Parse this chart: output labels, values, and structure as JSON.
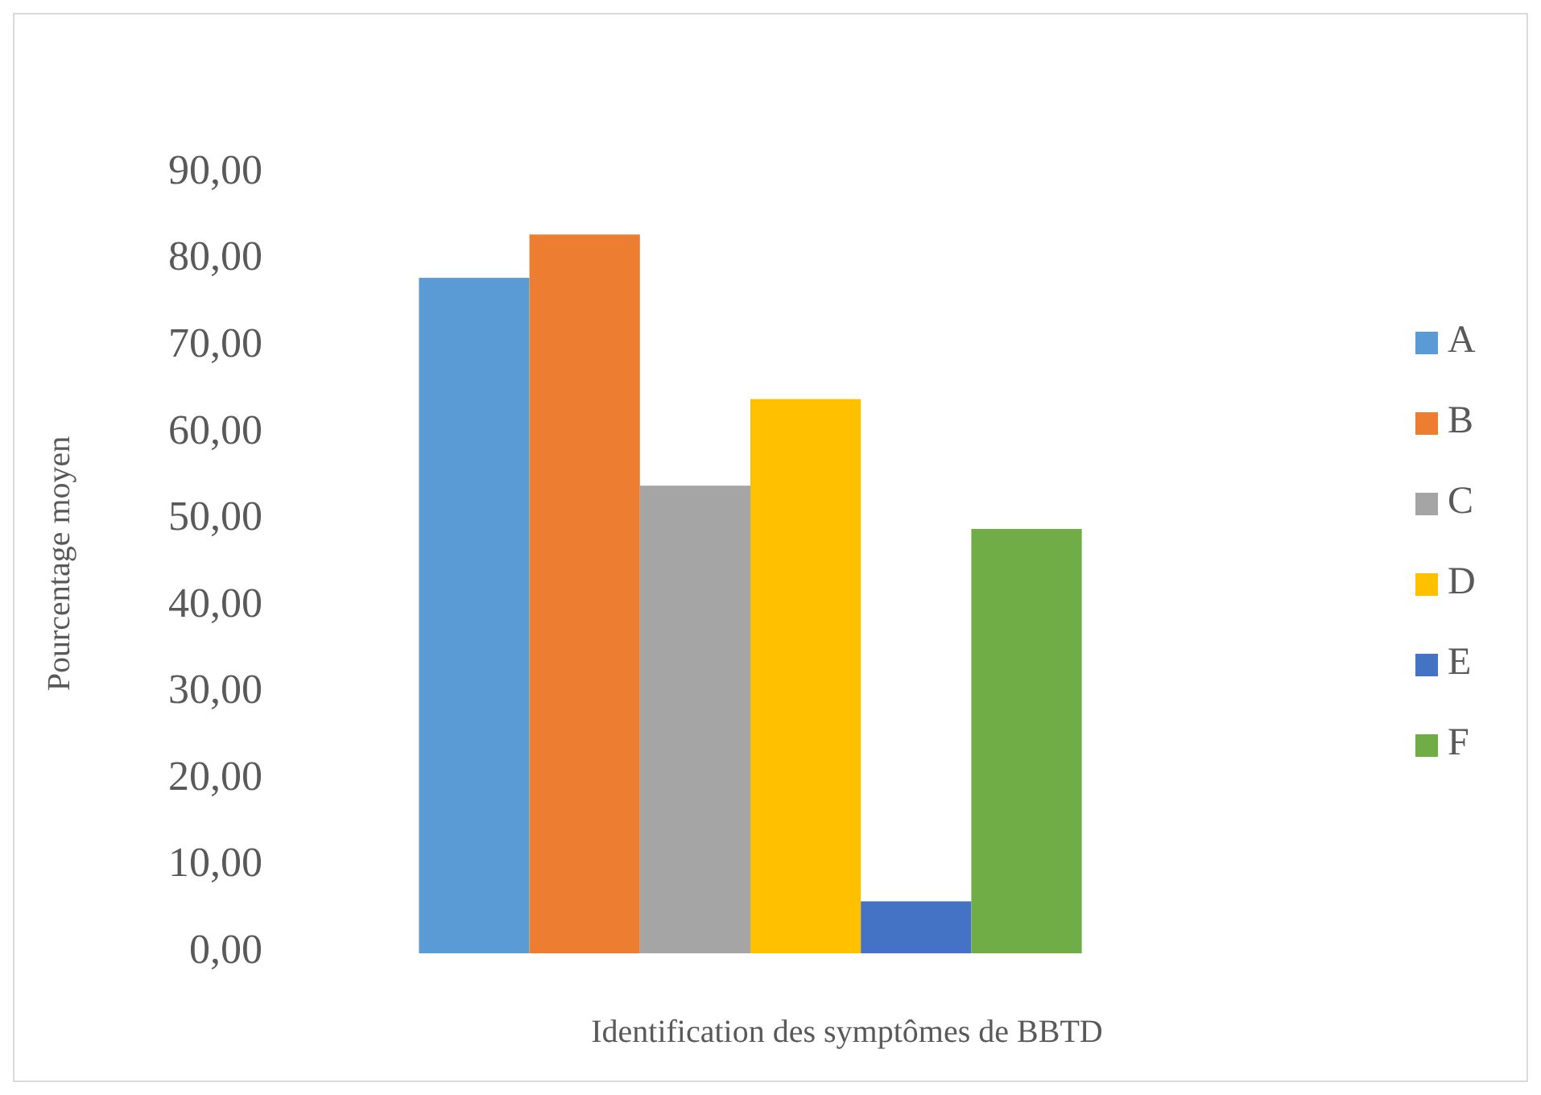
{
  "chart_data": {
    "type": "bar",
    "xlabel": "Identification des symptômes de BBTD",
    "ylabel": "Pourcentage moyen",
    "categories": [
      null
    ],
    "series": [
      {
        "name": "A",
        "color": "#5b9bd5",
        "values": [
          78
        ]
      },
      {
        "name": "B",
        "color": "#ed7d31",
        "values": [
          83
        ]
      },
      {
        "name": "C",
        "color": "#a5a5a5",
        "values": [
          54
        ]
      },
      {
        "name": "D",
        "color": "#ffc000",
        "values": [
          64
        ]
      },
      {
        "name": "E",
        "color": "#4472c4",
        "values": [
          6
        ]
      },
      {
        "name": "F",
        "color": "#70ad47",
        "values": [
          49
        ]
      }
    ],
    "ylim": [
      0,
      90
    ],
    "yticks": [
      {
        "value": 0,
        "label": "0,00"
      },
      {
        "value": 10,
        "label": "10,00"
      },
      {
        "value": 20,
        "label": "20,00"
      },
      {
        "value": 30,
        "label": "30,00"
      },
      {
        "value": 40,
        "label": "40,00"
      },
      {
        "value": 50,
        "label": "50,00"
      },
      {
        "value": 60,
        "label": "60,00"
      },
      {
        "value": 70,
        "label": "70,00"
      },
      {
        "value": 80,
        "label": "80,00"
      },
      {
        "value": 90,
        "label": "90,00"
      }
    ],
    "legend": "right"
  }
}
